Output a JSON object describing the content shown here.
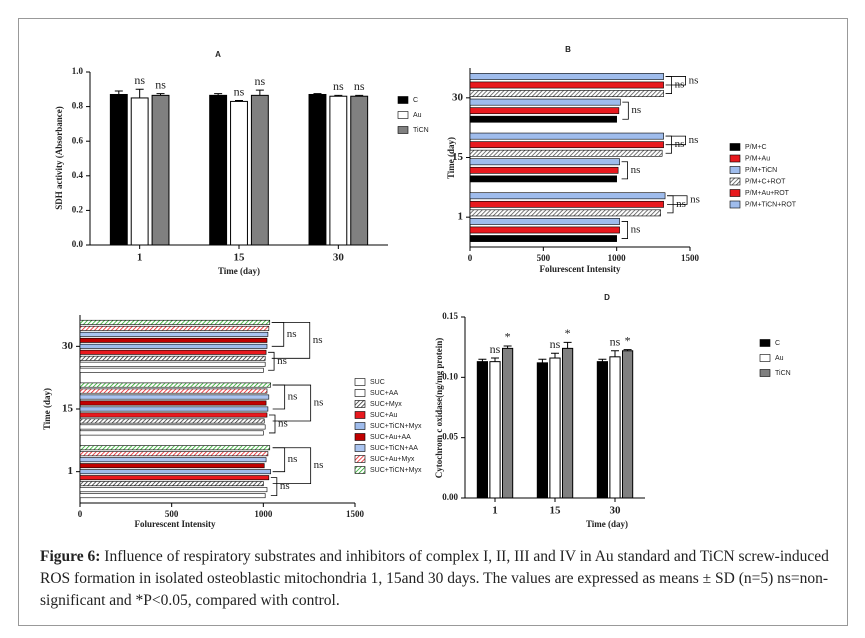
{
  "chart_data": [
    {
      "type": "bar",
      "title": "A",
      "x_label": "Time (day)",
      "y_label": "SDH activity (Absorbance)",
      "categories": [
        "1",
        "15",
        "30"
      ],
      "ylim": [
        0,
        1.0
      ],
      "yticks": [
        {
          "value": 0,
          "label": "0.0"
        },
        {
          "value": 0.2,
          "label": "0.2"
        },
        {
          "value": 0.4,
          "label": "0.4"
        },
        {
          "value": 0.6,
          "label": "0.6"
        },
        {
          "value": 0.8,
          "label": "0.8"
        },
        {
          "value": 1.0,
          "label": "1.0"
        }
      ],
      "series": [
        {
          "name": "C",
          "color": "#000000",
          "values": [
            0.87,
            0.865,
            0.87
          ],
          "errors": [
            0.02,
            0.01,
            0.005
          ]
        },
        {
          "name": "Au",
          "color": "#ffffff",
          "values": [
            0.85,
            0.83,
            0.86
          ],
          "errors": [
            0.05,
            0.005,
            0.005
          ],
          "annotations": [
            "ns",
            "ns",
            "ns"
          ]
        },
        {
          "name": "TiCN",
          "color": "#808080",
          "values": [
            0.865,
            0.865,
            0.86
          ],
          "errors": [
            0.01,
            0.03,
            0.005
          ],
          "annotations": [
            "ns",
            "ns",
            "ns"
          ]
        }
      ]
    },
    {
      "type": "barh",
      "title": "B",
      "x_label": "Folurescent Intensity",
      "y_label": "Time (day)",
      "categories": [
        "1",
        "15",
        "30"
      ],
      "xlim": [
        0,
        1500
      ],
      "xticks": [
        0,
        500,
        1000,
        1500
      ],
      "series": [
        {
          "name": "P/M+C",
          "color": "#000000",
          "values": [
            1000,
            1000,
            1000
          ]
        },
        {
          "name": "P/M+Au",
          "color": "#e8191e",
          "values": [
            1020,
            1010,
            1015
          ]
        },
        {
          "name": "P/M+TiCN",
          "color": "#9fbcec",
          "values": [
            1020,
            1020,
            1025
          ]
        },
        {
          "name": "P/M+C+ROT",
          "color": "#555555",
          "hatch": true,
          "values": [
            1300,
            1310,
            1320
          ]
        },
        {
          "name": "P/M+Au+ROT",
          "color": "#e8191e",
          "values": [
            1320,
            1320,
            1320
          ]
        },
        {
          "name": "P/M+TiCN+ROT",
          "color": "#9fbcec",
          "values": [
            1330,
            1320,
            1320
          ]
        }
      ],
      "annotations": [
        "ns",
        "ns",
        "ns",
        "ns",
        "ns",
        "ns",
        "ns",
        "ns",
        "ns"
      ]
    },
    {
      "type": "barh",
      "x_label": "Folurescent Intensity",
      "y_label": "Time (day)",
      "categories": [
        "1",
        "15",
        "30"
      ],
      "xlim": [
        0,
        1500
      ],
      "xticks": [
        0,
        500,
        1000,
        1500
      ],
      "series": [
        {
          "name": "SUC",
          "color": "#ffffff",
          "values": [
            1010,
            1000,
            1000
          ]
        },
        {
          "name": "SUC+AA",
          "color": "#ffffff",
          "values": [
            1020,
            1010,
            1010
          ]
        },
        {
          "name": "SUC+Myx",
          "color": "#333333",
          "hatch": true,
          "values": [
            1000,
            1005,
            1010
          ]
        },
        {
          "name": "SUC+Au",
          "color": "#e8191e",
          "values": [
            1030,
            1020,
            1015
          ]
        },
        {
          "name": "SUC+TiCN+Myx",
          "color": "#9fbcec",
          "values": [
            1040,
            1025,
            1020
          ]
        },
        {
          "name": "SUC+Au+AA",
          "color": "#c00000",
          "values": [
            1005,
            1015,
            1020
          ]
        },
        {
          "name": "SUC+TiCN+AA",
          "color": "#aac4f0",
          "values": [
            1015,
            1030,
            1025
          ]
        },
        {
          "name": "SUC+Au+Myx",
          "color": "#e8191e",
          "hatch": true,
          "values": [
            1025,
            1020,
            1030
          ]
        },
        {
          "name": "SUC+TiCN+Myx",
          "color": "#22a722",
          "hatch": true,
          "values": [
            1035,
            1040,
            1035
          ]
        }
      ],
      "annotations": [
        "ns",
        "ns",
        "ns",
        "ns",
        "ns",
        "ns",
        "ns",
        "ns",
        "ns"
      ]
    },
    {
      "type": "bar",
      "title": "D",
      "x_label": "Time (day)",
      "y_label": "Cytochrom c oxidase(ng/mg protein)",
      "categories": [
        "1",
        "15",
        "30"
      ],
      "ylim": [
        0,
        0.15
      ],
      "yticks": [
        {
          "value": 0,
          "label": "0.00"
        },
        {
          "value": 0.05,
          "label": "0.05"
        },
        {
          "value": 0.1,
          "label": "0.10"
        },
        {
          "value": 0.15,
          "label": "0.15"
        }
      ],
      "series": [
        {
          "name": "C",
          "color": "#000000",
          "values": [
            0.113,
            0.112,
            0.113
          ],
          "errors": [
            0.002,
            0.003,
            0.002
          ]
        },
        {
          "name": "Au",
          "color": "#ffffff",
          "values": [
            0.113,
            0.116,
            0.117
          ],
          "errors": [
            0.003,
            0.004,
            0.005
          ],
          "annotations": [
            "ns",
            "ns",
            "ns"
          ]
        },
        {
          "name": "TiCN",
          "color": "#808080",
          "values": [
            0.124,
            0.124,
            0.122
          ],
          "errors": [
            0.002,
            0.005,
            0.001
          ],
          "annotations": [
            "*",
            "*",
            "*"
          ]
        }
      ]
    }
  ],
  "caption": {
    "label": "Figure 6:",
    "text": "Influence of respiratory substrates and inhibitors of complex I, II, III and IV in Au standard and TiCN screw-induced ROS formation in isolated osteoblastic mitochondria 1, 15and 30 days. The values are expressed as means ± SD (n=5) ns=non-significant and *P<0.05, compared with control."
  }
}
